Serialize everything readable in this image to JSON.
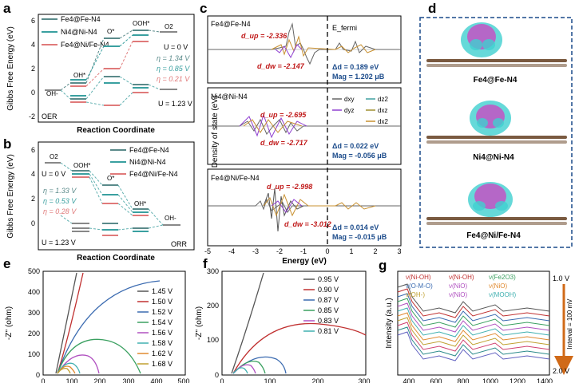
{
  "colors": {
    "fe": "#5a8a8a",
    "ni": "#3aa0a0",
    "feni": "#e07a7a",
    "gray": "#888888",
    "dash": "#60b0b0",
    "dup": "#c01818",
    "dxy": "#666666",
    "dyz": "#9040d0",
    "dz2": "#40a0a0",
    "dxz": "#a09030",
    "dx2": "#c89030",
    "dn": "#1a4a8a",
    "magenta": "#d040c0",
    "cyan": "#40d0d0",
    "brown": "#7a5a40"
  },
  "panels": {
    "a": {
      "letter": "a",
      "ylabel": "Gibbs Free Energy (eV)",
      "yticks": [
        "6",
        "4",
        "2",
        "0",
        "-2"
      ],
      "legend": [
        "Fe4@Fe-N4",
        "Ni4@Ni-N4",
        "Fe4@Ni/Fe-N4"
      ],
      "species": [
        "OH-",
        "OH*",
        "O*",
        "OOH*",
        "O2"
      ],
      "eta": [
        "η = 1.34 V",
        "η = 0.85 V",
        "η = 0.21 V"
      ],
      "u0": "U = 0 V",
      "u123": "U = 1.23 V",
      "tag": "OER",
      "xlabel": "Reaction Coordinate"
    },
    "b": {
      "letter": "b",
      "ylabel": "Gibbs Free Energy (eV)",
      "yticks": [
        "6",
        "4",
        "2",
        "0"
      ],
      "legend": [
        "Fe4@Fe-N4",
        "Ni4@Ni-N4",
        "Fe4@Ni/Fe-N4"
      ],
      "species": [
        "O2",
        "OOH*",
        "O*",
        "OH*",
        "OH-"
      ],
      "eta": [
        "η = 1.33 V",
        "η = 0.53 V",
        "η = 0.28 V"
      ],
      "u0": "U = 0 V",
      "u123": "U = 1.23 V",
      "tag": "ORR",
      "xlabel": "Reaction Coordinate"
    },
    "c": {
      "letter": "c",
      "ylabel": "Density of state (eV)",
      "xlabel": "Energy (eV)",
      "xticks": [
        "-5",
        "-4",
        "-3",
        "-2",
        "-1",
        "0",
        "1",
        "2",
        "3"
      ],
      "efermi": "E_fermi",
      "subs": [
        {
          "title": "Fe4@Fe-N4",
          "dup": "d_up = -2.336",
          "ddw": "d_dw = -2.147",
          "delta": "Δd = 0.189 eV",
          "mag": "Mag = 1.202 μB"
        },
        {
          "title": "Ni4@Ni-N4",
          "dup": "d_up = -2.695",
          "ddw": "d_dw = -2.717",
          "delta": "Δd = 0.022 eV",
          "mag": "Mag = -0.056 μB"
        },
        {
          "title": "Fe4@Ni/Fe-N4",
          "dup": "d_up = -2.998",
          "ddw": "d_dw = -3.012",
          "delta": "Δd = 0.014 eV",
          "mag": "Mag = -0.015 μB"
        }
      ],
      "orbitals": [
        "dxy",
        "dz2",
        "dyz",
        "dxz",
        "dx2"
      ]
    },
    "d": {
      "letter": "d",
      "labels": [
        "Fe4@Fe-N4",
        "Ni4@Ni-N4",
        "Fe4@Ni/Fe-N4"
      ]
    },
    "e": {
      "letter": "e",
      "ylabel": "-Z'' (ohm)",
      "yticks": [
        "500",
        "400",
        "300",
        "200",
        "100",
        "0"
      ],
      "xticks": [
        "0",
        "100",
        "200",
        "300",
        "400",
        "500"
      ],
      "legend": [
        "1.45 V",
        "1.50 V",
        "1.52 V",
        "1.54 V",
        "1.56 V",
        "1.58 V",
        "1.62 V",
        "1.68 V"
      ]
    },
    "f": {
      "letter": "f",
      "ylabel": "-Z'' (ohm)",
      "yticks": [
        "300",
        "200",
        "100",
        "0"
      ],
      "xticks": [
        "0",
        "100",
        "200",
        "300"
      ],
      "legend": [
        "0.95 V",
        "0.90 V",
        "0.87 V",
        "0.85 V",
        "0.83 V",
        "0.81 V"
      ]
    },
    "g": {
      "letter": "g",
      "ylabel": "Intensity (a.u.)",
      "xticks": [
        "400",
        "600",
        "800",
        "1000",
        "1200",
        "1400"
      ],
      "legend": [
        "ν(Ni-OH)",
        "ν(Ni-OH)",
        "ν(Fe2O3)",
        "ν(O-M-O)",
        "ν(NiO)",
        "ν(NiO)",
        "ν(OH-)",
        "ν(NiO)",
        "ν(MOOH)"
      ],
      "top": "1.0 V",
      "bottom": "2.0 V",
      "interval": "Interval = 100 mV"
    }
  }
}
